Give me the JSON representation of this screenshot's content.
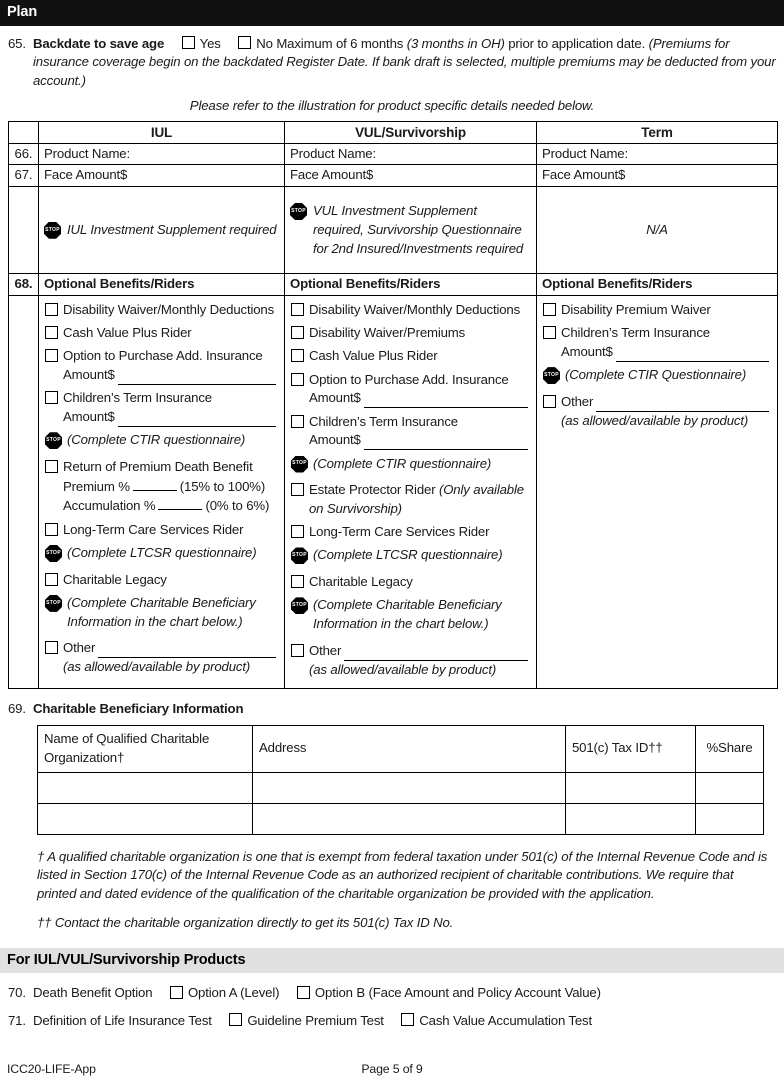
{
  "page": {
    "section1_title": "Plan",
    "section2_title": "For IUL/VUL/Survivorship Products",
    "footer_left": "ICC20-LIFE-App",
    "footer_center": "Page 5 of 9",
    "stop_icon_label": "STOP",
    "colors": {
      "header_bar": "#111111",
      "subheader_bar": "#e0e0e0"
    }
  },
  "q65": {
    "number": "65.",
    "label": "Backdate to save age",
    "options": [
      "Yes",
      "No"
    ],
    "text_a": "Maximum of 6 months",
    "text_a_italic": "(3 months in OH)",
    "text_b": "prior to application date.",
    "text_c_italic": "(Premiums for insurance coverage begin on the backdated Register Date. If bank draft is selected, multiple premiums may be deducted from your account.)"
  },
  "illustration_note": "Please refer to the illustration for product specific details needed below.",
  "product_table": {
    "columns": [
      "IUL",
      "VUL/Survivorship",
      "Term"
    ],
    "row66": {
      "number": "66.",
      "cells": [
        "Product Name:",
        "Product Name:",
        "Product Name:"
      ]
    },
    "row67": {
      "number": "67.",
      "cells": [
        "Face Amount$",
        "Face Amount$",
        "Face Amount$"
      ]
    },
    "stop_row": {
      "iul": "IUL Investment Supplement required",
      "vul": "VUL Investment Supplement required, Survivorship Questionnaire for 2nd Insured/Investments required",
      "term": "N/A"
    },
    "row68": {
      "number": "68.",
      "header": "Optional Benefits/Riders"
    },
    "riders": {
      "iul": [
        {
          "type": "check",
          "label": "Disability Waiver/Monthly Deductions"
        },
        {
          "type": "check",
          "label": "Cash Value Plus Rider"
        },
        {
          "type": "check",
          "label": "Option to Purchase Add. Insurance",
          "sub_blank": "Amount$"
        },
        {
          "type": "check",
          "label": "Children’s Term Insurance",
          "sub_blank": "Amount$"
        },
        {
          "type": "stop",
          "note": "(Complete CTIR questionnaire)"
        },
        {
          "type": "check",
          "label": "Return of Premium Death Benefit",
          "lines": [
            {
              "pre": "Premium %",
              "post": "(15% to 100%)"
            },
            {
              "pre": "Accumulation %",
              "post": "(0% to 6%)"
            }
          ]
        },
        {
          "type": "check",
          "label": "Long-Term Care Services Rider"
        },
        {
          "type": "stop",
          "note": "(Complete LTCSR questionnaire)"
        },
        {
          "type": "check",
          "label": "Charitable Legacy"
        },
        {
          "type": "stop",
          "note": "(Complete Charitable Beneficiary Information in the chart below.)"
        },
        {
          "type": "check",
          "label": "Other",
          "blank_after": true,
          "sub_italic": "(as allowed/available by product)"
        }
      ],
      "vul": [
        {
          "type": "check",
          "label": "Disability Waiver/Monthly Deductions"
        },
        {
          "type": "check",
          "label": "Disability Waiver/Premiums"
        },
        {
          "type": "check",
          "label": "Cash Value Plus Rider"
        },
        {
          "type": "check",
          "label": "Option to Purchase Add. Insurance",
          "sub_blank": "Amount$"
        },
        {
          "type": "check",
          "label": "Children’s Term Insurance",
          "sub_blank": "Amount$"
        },
        {
          "type": "stop",
          "note": "(Complete CTIR questionnaire)"
        },
        {
          "type": "check",
          "label": "Estate Protector Rider",
          "label_italic": "(Only available on Survivorship)"
        },
        {
          "type": "check",
          "label": "Long-Term Care Services Rider"
        },
        {
          "type": "stop",
          "note": "(Complete LTCSR questionnaire)"
        },
        {
          "type": "check",
          "label": "Charitable Legacy"
        },
        {
          "type": "stop",
          "note": "(Complete Charitable Beneficiary Information in the chart below.)"
        },
        {
          "type": "check",
          "label": "Other",
          "blank_after": true,
          "sub_italic": "(as allowed/available by product)"
        }
      ],
      "term": [
        {
          "type": "check",
          "label": "Disability Premium Waiver"
        },
        {
          "type": "check",
          "label": "Children’s Term Insurance",
          "sub_blank": "Amount$"
        },
        {
          "type": "stop",
          "note": "(Complete CTIR Questionnaire)"
        },
        {
          "type": "check",
          "label": "Other",
          "blank_after": true,
          "sub_italic": "(as allowed/available by product)"
        }
      ]
    }
  },
  "q69": {
    "number": "69.",
    "label": "Charitable Beneficiary Information",
    "table": {
      "headers": [
        "Name of Qualified Charitable Organization†",
        "Address",
        "501(c) Tax ID††",
        "%Share"
      ],
      "empty_rows": 2
    },
    "footnote1": "† A qualified charitable organization is one that is exempt from federal taxation under 501(c) of the Internal Revenue Code and is listed in Section 170(c) of the Internal Revenue Code as an authorized recipient of charitable contributions. We require that printed and dated evidence of the qualification of the charitable organization be provided with the application.",
    "footnote2": "†† Contact the charitable organization directly to get its 501(c) Tax ID No."
  },
  "q70": {
    "number": "70.",
    "label": "Death Benefit Option",
    "options": [
      "Option A (Level)",
      "Option B (Face Amount and Policy Account Value)"
    ]
  },
  "q71": {
    "number": "71.",
    "label": "Definition of Life Insurance Test",
    "options": [
      "Guideline Premium Test",
      "Cash Value Accumulation Test"
    ]
  }
}
